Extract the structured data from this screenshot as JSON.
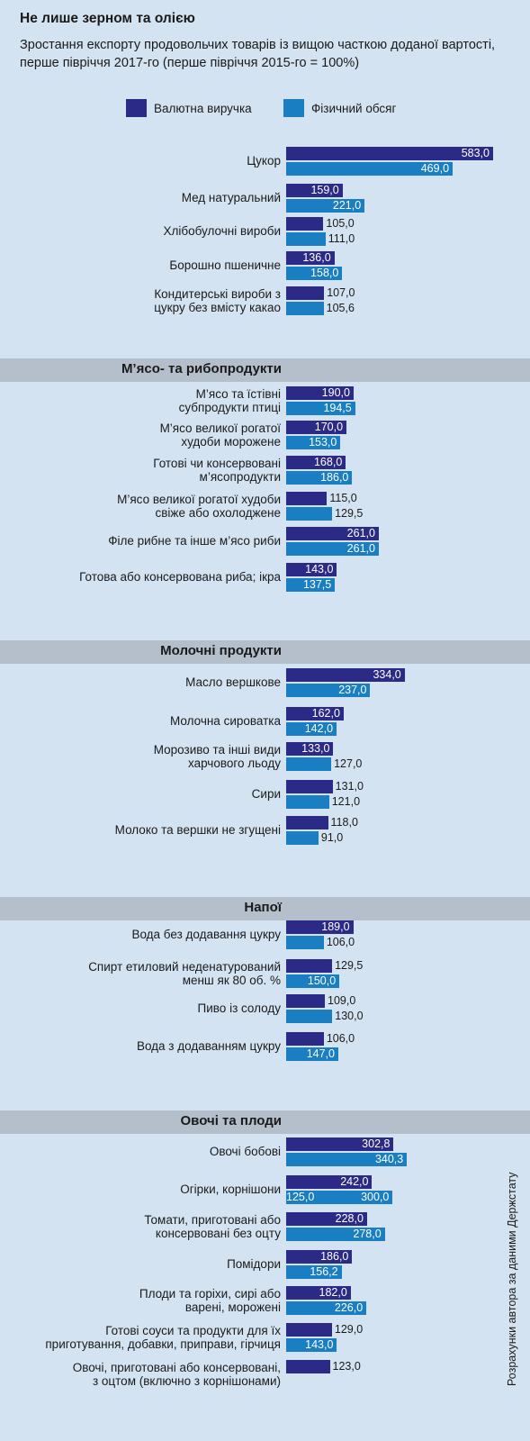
{
  "chart_data": {
    "type": "bar",
    "orientation": "horizontal",
    "title": "Не лише зерном та олією",
    "subtitle": "Зростання експорту продовольчих товарів із вищою часткою доданої вартості, перше півріччя 2017-го (перше півріччя 2015-го = 100%)",
    "legend": [
      {
        "name": "Валютна виручка",
        "color": "#2b2a86"
      },
      {
        "name": "Фізичний обсяг",
        "color": "#1a7fc2"
      }
    ],
    "legend_position": "top-left",
    "source": "Розрахунки автора за даними Держстату",
    "colors": {
      "background": "#d4e3f1",
      "section_band": "#b4bfcb"
    },
    "groups": [
      {
        "name": "",
        "items": [
          {
            "label": "Цукор",
            "revenue": 583.0,
            "revenue_label": "583,0",
            "volume": 469.0,
            "volume_label": "469,0"
          },
          {
            "label": "Мед натуральний",
            "revenue": 159.0,
            "revenue_label": "159,0",
            "volume": 221.0,
            "volume_label": "221,0"
          },
          {
            "label": "Хлібобулочні вироби",
            "revenue": 105.0,
            "revenue_label": "105,0",
            "volume": 111.0,
            "volume_label": "111,0"
          },
          {
            "label": "Борошно пшеничне",
            "revenue": 136.0,
            "revenue_label": "136,0",
            "volume": 158.0,
            "volume_label": "158,0"
          },
          {
            "label": "Кондитерські вироби з\nцукру без вмісту какао",
            "revenue": 107.0,
            "revenue_label": "107,0",
            "volume": 105.6,
            "volume_label": "105,6"
          }
        ]
      },
      {
        "name": "М’ясо- та рибопродукти",
        "items": [
          {
            "label": "М’ясо та їстівні\nсубпродукти птиці",
            "revenue": 190.0,
            "revenue_label": "190,0",
            "volume": 194.5,
            "volume_label": "194,5"
          },
          {
            "label": "М’ясо великої рогатої\nхудоби морожене",
            "revenue": 170.0,
            "revenue_label": "170,0",
            "volume": 153.0,
            "volume_label": "153,0"
          },
          {
            "label": "Готові чи консервовані\nм’ясопродукти",
            "revenue": 168.0,
            "revenue_label": "168,0",
            "volume": 186.0,
            "volume_label": "186,0"
          },
          {
            "label": "М’ясо великої рогатої худоби\nсвіже або охолоджене",
            "revenue": 115.0,
            "revenue_label": "115,0",
            "volume": 129.5,
            "volume_label": "129,5"
          },
          {
            "label": "Філе рибне та інше м’ясо риби",
            "revenue": 261.0,
            "revenue_label": "261,0",
            "volume": 261.0,
            "volume_label": "261,0"
          },
          {
            "label": "Готова або консервована риба; ікра",
            "revenue": 143.0,
            "revenue_label": "143,0",
            "volume": 137.5,
            "volume_label": "137,5"
          }
        ]
      },
      {
        "name": "Молочні продукти",
        "items": [
          {
            "label": "Масло вершкове",
            "revenue": 334.0,
            "revenue_label": "334,0",
            "volume": 237.0,
            "volume_label": "237,0"
          },
          {
            "label": "Молочна сироватка",
            "revenue": 162.0,
            "revenue_label": "162,0",
            "volume": 142.0,
            "volume_label": "142,0"
          },
          {
            "label": "Морозиво та інші види\nхарчового льоду",
            "revenue": 133.0,
            "revenue_label": "133,0",
            "volume": 127.0,
            "volume_label": "127,0"
          },
          {
            "label": "Сири",
            "revenue": 131.0,
            "revenue_label": "131,0",
            "volume": 121.0,
            "volume_label": "121,0"
          },
          {
            "label": "Молоко та вершки не згущені",
            "revenue": 118.0,
            "revenue_label": "118,0",
            "volume": 91.0,
            "volume_label": "91,0"
          }
        ]
      },
      {
        "name": "Напої",
        "items": [
          {
            "label": "Вода без додавання цукру",
            "revenue": 189.0,
            "revenue_label": "189,0",
            "volume": 106.0,
            "volume_label": "106,0"
          },
          {
            "label": "Спирт етиловий неденатурований\nменш як 80 об. %",
            "revenue": 129.5,
            "revenue_label": "129,5",
            "volume": 150.0,
            "volume_label": "150,0"
          },
          {
            "label": "Пиво із солоду",
            "revenue": 109.0,
            "revenue_label": "109,0",
            "volume": 130.0,
            "volume_label": "130,0"
          },
          {
            "label": "Вода з додаванням цукру",
            "revenue": 106.0,
            "revenue_label": "106,0",
            "volume": 147.0,
            "volume_label": "147,0"
          }
        ]
      },
      {
        "name": "Овочі та плоди",
        "items": [
          {
            "label": "Овочі бобові",
            "revenue": 302.8,
            "revenue_label": "302,8",
            "volume": 340.3,
            "volume_label": "340,3"
          },
          {
            "label": "Огірки, корнішони",
            "revenue": 242.0,
            "revenue_label": "242,0",
            "volume": 300.0,
            "volume_label": "300,0",
            "extra_label": "125,0"
          },
          {
            "label": "Томати, приготовані або\nконсервовані без оцту",
            "revenue": 228.0,
            "revenue_label": "228,0",
            "volume": 278.0,
            "volume_label": "278,0"
          },
          {
            "label": "Помідори",
            "revenue": 186.0,
            "revenue_label": "186,0",
            "volume": 156.2,
            "volume_label": "156,2"
          },
          {
            "label": "Плоди та горіхи, сирі або\nварені, морожені",
            "revenue": 182.0,
            "revenue_label": "182,0",
            "volume": 226.0,
            "volume_label": "226,0"
          },
          {
            "label": "Готові соуси та продукти для їх\nприготування, добавки, приправи, гірчиця",
            "revenue": 129.0,
            "revenue_label": "129,0",
            "volume": 143.0,
            "volume_label": "143,0"
          },
          {
            "label": "Овочі, приготовані або консервовані,\nз оцтом (включно з корнішонами)",
            "revenue": 123.0,
            "revenue_label": "123,0",
            "volume": null,
            "volume_label": ""
          }
        ]
      }
    ]
  }
}
